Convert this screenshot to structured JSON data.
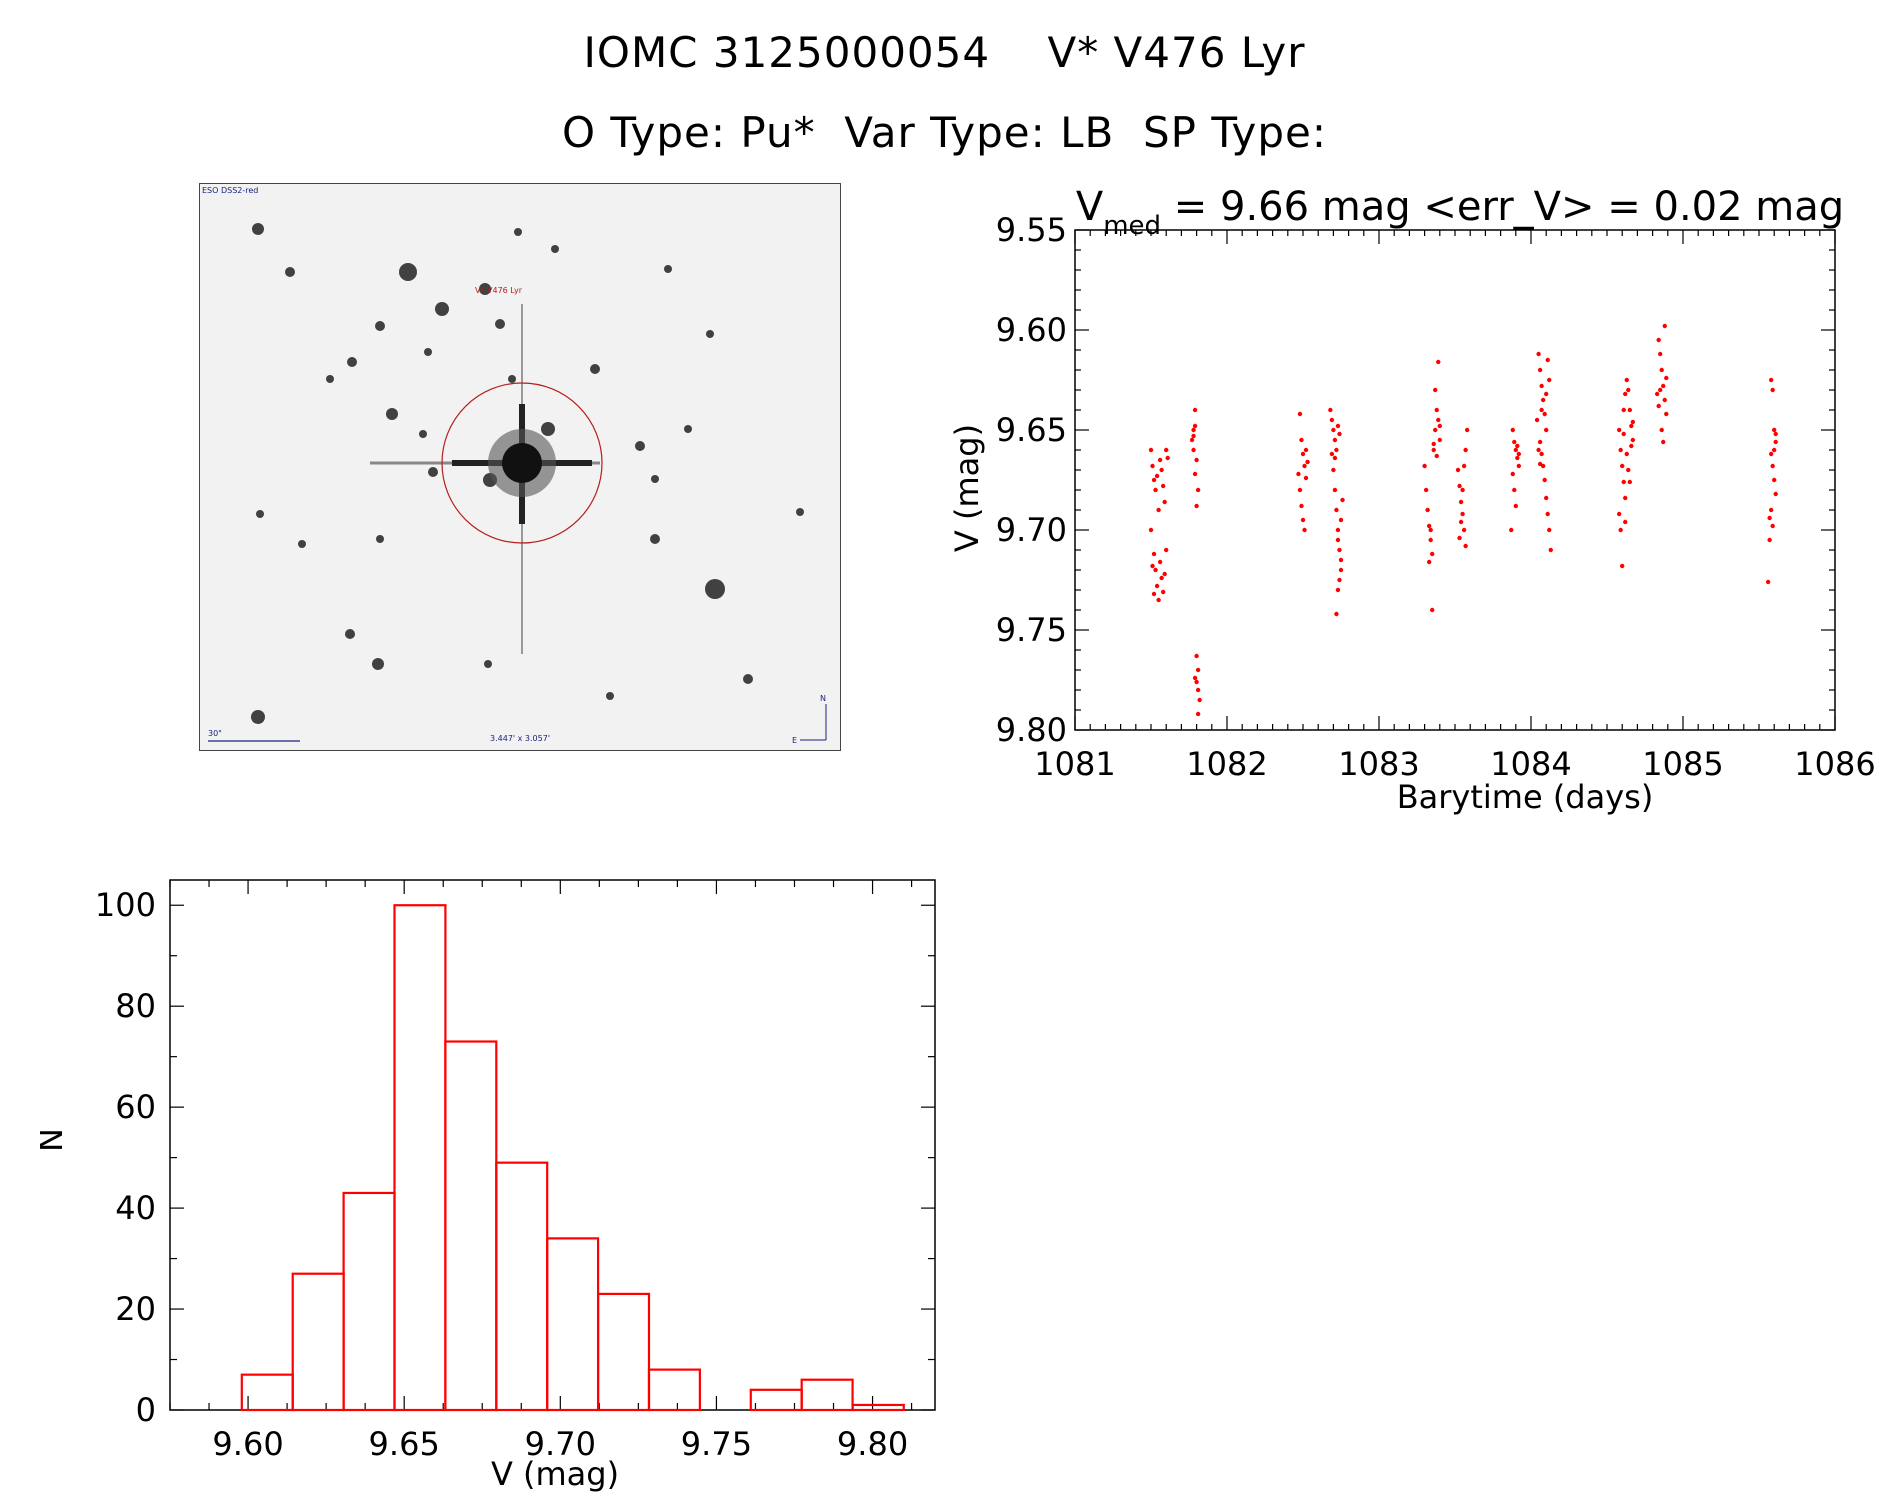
{
  "header": {
    "title_line1": "IOMC 3125000054    V* V476 Lyr",
    "title_line2": "O Type: Pu*  Var Type: LB  SP Type:"
  },
  "image_panel": {
    "survey_label": "ESO DSS2-red",
    "target_label": "V* V476 Lyr",
    "scale_label": "30\"",
    "size_label": "3.447' x 3.057'",
    "north_label": "N",
    "east_label": "E",
    "colors": {
      "marker": "#b71c1c",
      "annotation": "#1a237e"
    }
  },
  "lightcurve": {
    "title_prefix": "V",
    "title_sub": "med",
    "title_rest": " = 9.66 mag <err_V> = 0.02 mag",
    "color": "#ff0000"
  },
  "chart_data": [
    {
      "type": "scatter",
      "xlabel": "Barytime (days)",
      "ylabel": "V (mag)",
      "xlim": [
        1081,
        1086
      ],
      "ylim": [
        9.8,
        9.55
      ],
      "y_reversed": true,
      "xticks": [
        "1081",
        "1082",
        "1083",
        "1084",
        "1085",
        "1086"
      ],
      "yticks": [
        "9.55",
        "9.60",
        "9.65",
        "9.70",
        "9.75",
        "9.80"
      ],
      "points": [
        [
          1081.5,
          9.66
        ],
        [
          1081.51,
          9.668
        ],
        [
          1081.52,
          9.675
        ],
        [
          1081.53,
          9.68
        ],
        [
          1081.54,
          9.673
        ],
        [
          1081.55,
          9.69
        ],
        [
          1081.5,
          9.7
        ],
        [
          1081.56,
          9.665
        ],
        [
          1081.57,
          9.67
        ],
        [
          1081.58,
          9.678
        ],
        [
          1081.59,
          9.686
        ],
        [
          1081.6,
          9.66
        ],
        [
          1081.61,
          9.664
        ],
        [
          1081.52,
          9.712
        ],
        [
          1081.53,
          9.72
        ],
        [
          1081.54,
          9.728
        ],
        [
          1081.55,
          9.735
        ],
        [
          1081.56,
          9.716
        ],
        [
          1081.57,
          9.724
        ],
        [
          1081.58,
          9.731
        ],
        [
          1081.59,
          9.722
        ],
        [
          1081.6,
          9.71
        ],
        [
          1081.51,
          9.718
        ],
        [
          1081.52,
          9.732
        ],
        [
          1081.77,
          9.655
        ],
        [
          1081.78,
          9.65
        ],
        [
          1081.79,
          9.64
        ],
        [
          1081.78,
          9.66
        ],
        [
          1081.8,
          9.665
        ],
        [
          1081.79,
          9.672
        ],
        [
          1081.81,
          9.68
        ],
        [
          1081.8,
          9.688
        ],
        [
          1081.78,
          9.653
        ],
        [
          1081.79,
          9.648
        ],
        [
          1081.8,
          9.763
        ],
        [
          1081.81,
          9.77
        ],
        [
          1081.8,
          9.776
        ],
        [
          1081.81,
          9.78
        ],
        [
          1081.82,
          9.785
        ],
        [
          1081.81,
          9.792
        ],
        [
          1081.79,
          9.774
        ],
        [
          1082.48,
          9.642
        ],
        [
          1082.49,
          9.655
        ],
        [
          1082.5,
          9.662
        ],
        [
          1082.51,
          9.668
        ],
        [
          1082.52,
          9.674
        ],
        [
          1082.48,
          9.68
        ],
        [
          1082.49,
          9.688
        ],
        [
          1082.5,
          9.695
        ],
        [
          1082.51,
          9.7
        ],
        [
          1082.52,
          9.66
        ],
        [
          1082.53,
          9.666
        ],
        [
          1082.47,
          9.672
        ],
        [
          1082.68,
          9.64
        ],
        [
          1082.69,
          9.645
        ],
        [
          1082.7,
          9.65
        ],
        [
          1082.71,
          9.655
        ],
        [
          1082.72,
          9.66
        ],
        [
          1082.73,
          9.648
        ],
        [
          1082.74,
          9.652
        ],
        [
          1082.7,
          9.67
        ],
        [
          1082.71,
          9.68
        ],
        [
          1082.72,
          9.69
        ],
        [
          1082.73,
          9.7
        ],
        [
          1082.74,
          9.71
        ],
        [
          1082.75,
          9.72
        ],
        [
          1082.73,
          9.73
        ],
        [
          1082.74,
          9.725
        ],
        [
          1082.72,
          9.742
        ],
        [
          1082.75,
          9.695
        ],
        [
          1082.76,
          9.685
        ],
        [
          1082.73,
          9.705
        ],
        [
          1082.71,
          9.664
        ],
        [
          1082.69,
          9.662
        ],
        [
          1082.75,
          9.715
        ],
        [
          1083.3,
          9.668
        ],
        [
          1083.31,
          9.68
        ],
        [
          1083.32,
          9.69
        ],
        [
          1083.33,
          9.698
        ],
        [
          1083.34,
          9.705
        ],
        [
          1083.35,
          9.712
        ],
        [
          1083.33,
          9.716
        ],
        [
          1083.34,
          9.7
        ],
        [
          1083.35,
          9.74
        ],
        [
          1083.36,
          9.66
        ],
        [
          1083.37,
          9.65
        ],
        [
          1083.38,
          9.64
        ],
        [
          1083.39,
          9.645
        ],
        [
          1083.4,
          9.655
        ],
        [
          1083.38,
          9.663
        ],
        [
          1083.39,
          9.616
        ],
        [
          1083.37,
          9.63
        ],
        [
          1083.36,
          9.657
        ],
        [
          1083.4,
          9.648
        ],
        [
          1083.52,
          9.67
        ],
        [
          1083.53,
          9.678
        ],
        [
          1083.54,
          9.686
        ],
        [
          1083.55,
          9.692
        ],
        [
          1083.56,
          9.7
        ],
        [
          1083.57,
          9.708
        ],
        [
          1083.55,
          9.68
        ],
        [
          1083.56,
          9.668
        ],
        [
          1083.57,
          9.66
        ],
        [
          1083.58,
          9.65
        ],
        [
          1083.54,
          9.696
        ],
        [
          1083.53,
          9.704
        ],
        [
          1083.88,
          9.65
        ],
        [
          1083.89,
          9.656
        ],
        [
          1083.9,
          9.66
        ],
        [
          1083.91,
          9.664
        ],
        [
          1083.92,
          9.668
        ],
        [
          1083.88,
          9.672
        ],
        [
          1083.89,
          9.68
        ],
        [
          1083.9,
          9.688
        ],
        [
          1083.87,
          9.7
        ],
        [
          1083.91,
          9.658
        ],
        [
          1083.92,
          9.662
        ],
        [
          1084.05,
          9.612
        ],
        [
          1084.06,
          9.62
        ],
        [
          1084.07,
          9.628
        ],
        [
          1084.08,
          9.635
        ],
        [
          1084.09,
          9.642
        ],
        [
          1084.1,
          9.65
        ],
        [
          1084.06,
          9.656
        ],
        [
          1084.07,
          9.662
        ],
        [
          1084.08,
          9.668
        ],
        [
          1084.09,
          9.675
        ],
        [
          1084.1,
          9.684
        ],
        [
          1084.11,
          9.692
        ],
        [
          1084.12,
          9.7
        ],
        [
          1084.13,
          9.71
        ],
        [
          1084.05,
          9.66
        ],
        [
          1084.06,
          9.667
        ],
        [
          1084.11,
          9.615
        ],
        [
          1084.12,
          9.625
        ],
        [
          1084.07,
          9.64
        ],
        [
          1084.1,
          9.632
        ],
        [
          1084.04,
          9.645
        ],
        [
          1084.58,
          9.65
        ],
        [
          1084.59,
          9.66
        ],
        [
          1084.6,
          9.668
        ],
        [
          1084.61,
          9.676
        ],
        [
          1084.62,
          9.684
        ],
        [
          1084.58,
          9.692
        ],
        [
          1084.59,
          9.7
        ],
        [
          1084.6,
          9.718
        ],
        [
          1084.61,
          9.64
        ],
        [
          1084.62,
          9.632
        ],
        [
          1084.63,
          9.625
        ],
        [
          1084.64,
          9.63
        ],
        [
          1084.65,
          9.64
        ],
        [
          1084.66,
          9.648
        ],
        [
          1084.67,
          9.655
        ],
        [
          1084.63,
          9.662
        ],
        [
          1084.64,
          9.67
        ],
        [
          1084.65,
          9.676
        ],
        [
          1084.66,
          9.658
        ],
        [
          1084.67,
          9.646
        ],
        [
          1084.61,
          9.652
        ],
        [
          1084.62,
          9.696
        ],
        [
          1084.84,
          9.605
        ],
        [
          1084.85,
          9.612
        ],
        [
          1084.86,
          9.62
        ],
        [
          1084.87,
          9.628
        ],
        [
          1084.88,
          9.635
        ],
        [
          1084.89,
          9.642
        ],
        [
          1084.86,
          9.65
        ],
        [
          1084.87,
          9.656
        ],
        [
          1084.88,
          9.598
        ],
        [
          1084.85,
          9.63
        ],
        [
          1084.84,
          9.638
        ],
        [
          1084.89,
          9.624
        ],
        [
          1084.83,
          9.632
        ],
        [
          1085.58,
          9.625
        ],
        [
          1085.59,
          9.63
        ],
        [
          1085.6,
          9.65
        ],
        [
          1085.61,
          9.656
        ],
        [
          1085.58,
          9.662
        ],
        [
          1085.59,
          9.668
        ],
        [
          1085.6,
          9.675
        ],
        [
          1085.61,
          9.682
        ],
        [
          1085.58,
          9.69
        ],
        [
          1085.59,
          9.698
        ],
        [
          1085.57,
          9.705
        ],
        [
          1085.56,
          9.726
        ],
        [
          1085.6,
          9.66
        ],
        [
          1085.61,
          9.652
        ],
        [
          1085.57,
          9.694
        ]
      ]
    },
    {
      "type": "bar",
      "xlabel": "V (mag)",
      "ylabel": "N",
      "xlim": [
        9.575,
        9.82
      ],
      "ylim": [
        0,
        105
      ],
      "xticks": [
        "9.60",
        "9.65",
        "9.70",
        "9.75",
        "9.80"
      ],
      "yticks": [
        "0",
        "20",
        "40",
        "60",
        "80",
        "100"
      ],
      "bin_edges": [
        9.598,
        9.6143,
        9.6306,
        9.6469,
        9.6632,
        9.6795,
        9.6958,
        9.7121,
        9.7284,
        9.7447,
        9.761,
        9.7773,
        9.7936,
        9.81
      ],
      "values": [
        7,
        27,
        43,
        100,
        73,
        49,
        34,
        23,
        8,
        0,
        4,
        6,
        1
      ]
    }
  ]
}
